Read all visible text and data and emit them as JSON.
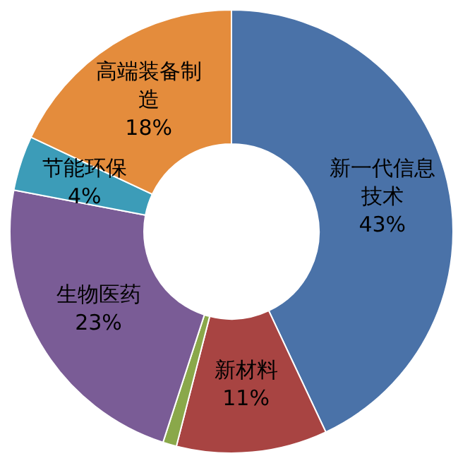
{
  "chart_data": {
    "type": "donut",
    "categories": [
      "新一代信息技术",
      "新材料",
      null,
      "生物医药",
      "节能环保",
      "高端装备制造"
    ],
    "values": [
      43,
      11,
      1,
      23,
      4,
      18
    ],
    "colors": [
      "#4a72a8",
      "#a84442",
      "#8aa84a",
      "#7a5c96",
      "#3c9cb8",
      "#e48c3c"
    ],
    "value_labels": [
      "43%",
      "11%",
      null,
      "23%",
      "4%",
      "18%"
    ]
  }
}
